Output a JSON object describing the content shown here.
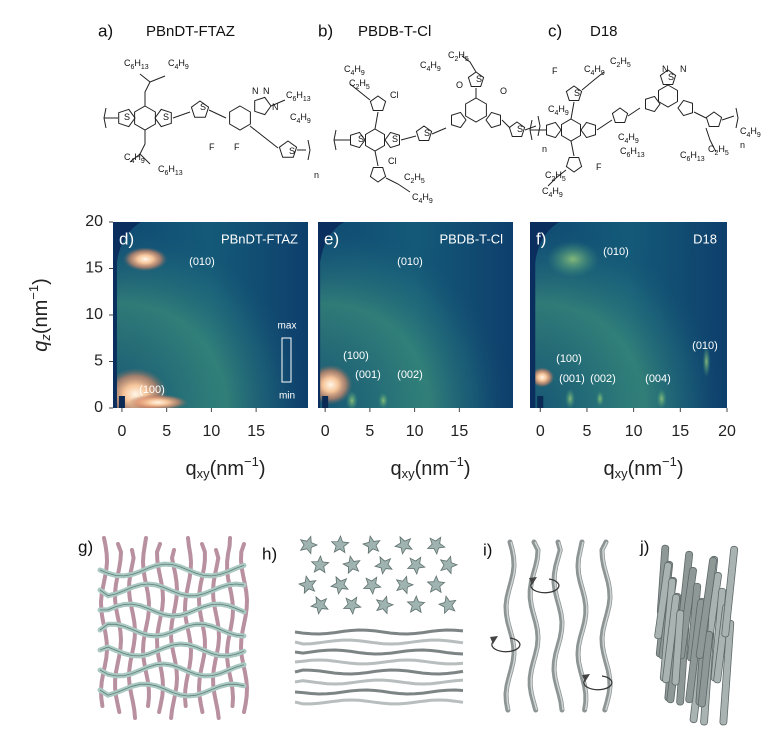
{
  "molecules": [
    {
      "label": "a)",
      "name": "PBnDT-FTAZ",
      "atoms": [
        "C6H13",
        "C4H9",
        "C4H9",
        "C6H13",
        "C6H13",
        "C4H9",
        "F",
        "F",
        "N",
        "N",
        "N",
        "S",
        "S",
        "S",
        "S",
        "n"
      ]
    },
    {
      "label": "b)",
      "name": "PBDB-T-Cl",
      "atoms": [
        "C4H9",
        "C2H5",
        "Cl",
        "C4H9",
        "C2H5",
        "O",
        "O",
        "S",
        "S",
        "S",
        "S",
        "S",
        "Cl",
        "C2H5",
        "C4H9",
        "n"
      ]
    },
    {
      "label": "c)",
      "name": "D18",
      "atoms": [
        "F",
        "C4H9",
        "C2H5",
        "S",
        "N",
        "N",
        "S",
        "C2H5",
        "C4H9",
        "C4H9",
        "C6H13",
        "C2H5",
        "C4H9",
        "F",
        "C4H9",
        "C6H13",
        "n"
      ]
    }
  ],
  "giwaxs": {
    "y_label": [
      "q",
      "z",
      "(nm",
      "−1",
      ")"
    ],
    "x_label": [
      "q",
      "xy",
      "(nm",
      "−1",
      ")"
    ],
    "ylim": [
      0,
      20
    ],
    "yticks": [
      0,
      5,
      10,
      15,
      20
    ],
    "colorbar": [
      "max",
      "min"
    ],
    "plots": [
      {
        "label": "d)",
        "name": "PBnDT-FTAZ",
        "xlim": [
          -1,
          20.8
        ],
        "xticks": [
          0,
          5,
          10,
          15
        ],
        "peaks": [
          "(010)",
          "(100)"
        ]
      },
      {
        "label": "e)",
        "name": "PBDB-T-Cl",
        "xlim": [
          -0.8,
          21
        ],
        "xticks": [
          0,
          5,
          10,
          15
        ],
        "peaks": [
          "(010)",
          "(100)",
          "(001)",
          "(002)"
        ]
      },
      {
        "label": "f)",
        "name": "D18",
        "xlim": [
          -1.1,
          20
        ],
        "xticks": [
          0,
          5,
          10,
          15,
          20
        ],
        "peaks": [
          "(010)",
          "(100)",
          "(001)",
          "(002)",
          "(004)",
          "(010)"
        ]
      }
    ]
  },
  "illustrations": [
    "g)",
    "h)",
    "i)",
    "j)"
  ]
}
